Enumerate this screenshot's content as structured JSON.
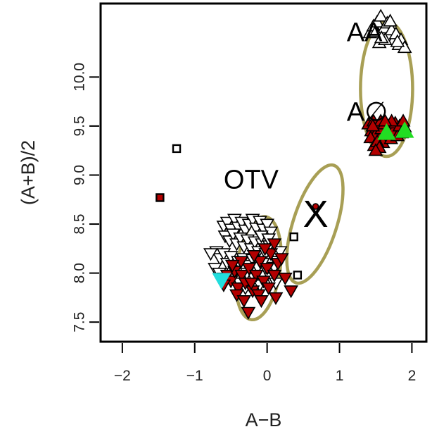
{
  "chart_data": {
    "type": "scatter",
    "xlabel": "A−B",
    "ylabel": "(A+B)/2",
    "xlim": [
      -2.3,
      2.2
    ],
    "ylim": [
      7.3,
      10.75
    ],
    "xticks": [
      -2,
      -1,
      0,
      1,
      2
    ],
    "yticks": [
      7.5,
      8.0,
      8.5,
      9.0,
      9.5,
      10.0
    ],
    "xtick_labels": [
      "−2",
      "−1",
      "0",
      "1",
      "2"
    ],
    "ytick_labels": [
      "7.5",
      "8.0",
      "8.5",
      "9.0",
      "9.5",
      "10.0"
    ],
    "grid": false,
    "colors": {
      "dark_red": "#b30000",
      "green": "#22dd22",
      "cyan": "#22dddd",
      "ellipse": "#a89f55",
      "open": "#ffffff"
    },
    "annotations": [
      {
        "text": "AA",
        "x": 1.1,
        "y": 10.45
      },
      {
        "text": "A∅",
        "x": 1.1,
        "y": 9.64
      },
      {
        "text": "OTV",
        "x": -0.6,
        "y": 8.95
      },
      {
        "text": "X",
        "x": 0.67,
        "y": 8.6
      }
    ],
    "ellipses": [
      {
        "group": "AA/A∅",
        "cx": 1.65,
        "cy": 9.88,
        "rx": 0.36,
        "ry": 0.69,
        "angle_deg": 0
      },
      {
        "group": "OTV",
        "cx": -0.12,
        "cy": 8.05,
        "rx": 0.3,
        "ry": 0.53,
        "angle_deg": 8
      },
      {
        "group": "X",
        "cx": 0.66,
        "cy": 8.5,
        "rx": 0.3,
        "ry": 0.63,
        "angle_deg": 18
      }
    ],
    "series": [
      {
        "marker": "square-open",
        "points": [
          [
            -1.25,
            9.27
          ],
          [
            0.37,
            8.37
          ],
          [
            0.42,
            7.98
          ]
        ]
      },
      {
        "marker": "square-red",
        "points": [
          [
            -1.48,
            8.77
          ]
        ]
      },
      {
        "marker": "dot-red",
        "points": [
          [
            0.67,
            8.68
          ]
        ]
      },
      {
        "marker": "triangle-up-open",
        "points": [
          [
            1.42,
            10.45
          ],
          [
            1.47,
            10.52
          ],
          [
            1.52,
            10.56
          ],
          [
            1.57,
            10.62
          ],
          [
            1.6,
            10.46
          ],
          [
            1.62,
            10.5
          ],
          [
            1.66,
            10.55
          ],
          [
            1.68,
            10.42
          ],
          [
            1.72,
            10.48
          ],
          [
            1.75,
            10.38
          ],
          [
            1.78,
            10.44
          ],
          [
            1.82,
            10.33
          ],
          [
            1.85,
            10.38
          ],
          [
            1.9,
            10.3
          ],
          [
            1.55,
            10.35
          ],
          [
            1.63,
            10.38
          ],
          [
            1.7,
            10.57
          ],
          [
            1.5,
            10.46
          ],
          [
            1.58,
            10.4
          ],
          [
            1.8,
            10.36
          ]
        ]
      },
      {
        "marker": "triangle-up-red",
        "points": [
          [
            1.4,
            9.52
          ],
          [
            1.44,
            9.45
          ],
          [
            1.47,
            9.55
          ],
          [
            1.5,
            9.42
          ],
          [
            1.53,
            9.5
          ],
          [
            1.56,
            9.38
          ],
          [
            1.58,
            9.47
          ],
          [
            1.6,
            9.33
          ],
          [
            1.62,
            9.52
          ],
          [
            1.65,
            9.42
          ],
          [
            1.68,
            9.49
          ],
          [
            1.71,
            9.37
          ],
          [
            1.74,
            9.45
          ],
          [
            1.77,
            9.53
          ],
          [
            1.8,
            9.4
          ],
          [
            1.83,
            9.5
          ],
          [
            1.86,
            9.43
          ],
          [
            1.9,
            9.49
          ],
          [
            1.43,
            9.38
          ],
          [
            1.48,
            9.3
          ],
          [
            1.52,
            9.34
          ],
          [
            1.55,
            9.28
          ],
          [
            1.5,
            9.25
          ],
          [
            1.57,
            9.55
          ],
          [
            1.72,
            9.55
          ],
          [
            1.88,
            9.55
          ],
          [
            1.46,
            9.5
          ],
          [
            1.63,
            9.55
          ]
        ]
      },
      {
        "marker": "triangle-up-green",
        "points": [
          [
            1.65,
            9.43
          ],
          [
            1.9,
            9.45
          ]
        ]
      },
      {
        "marker": "triangle-down-open",
        "points": [
          [
            -0.6,
            8.48
          ],
          [
            -0.55,
            8.52
          ],
          [
            -0.5,
            8.45
          ],
          [
            -0.45,
            8.55
          ],
          [
            -0.4,
            8.47
          ],
          [
            -0.35,
            8.52
          ],
          [
            -0.3,
            8.44
          ],
          [
            -0.25,
            8.5
          ],
          [
            -0.2,
            8.55
          ],
          [
            -0.15,
            8.46
          ],
          [
            -0.1,
            8.53
          ],
          [
            -0.05,
            8.45
          ],
          [
            0.0,
            8.5
          ],
          [
            0.05,
            8.42
          ],
          [
            -0.58,
            8.38
          ],
          [
            -0.52,
            8.33
          ],
          [
            -0.47,
            8.4
          ],
          [
            -0.42,
            8.3
          ],
          [
            -0.37,
            8.36
          ],
          [
            -0.32,
            8.27
          ],
          [
            -0.27,
            8.34
          ],
          [
            -0.22,
            8.25
          ],
          [
            -0.17,
            8.32
          ],
          [
            -0.12,
            8.22
          ],
          [
            -0.07,
            8.3
          ],
          [
            -0.02,
            8.2
          ],
          [
            0.03,
            8.28
          ],
          [
            0.08,
            8.18
          ],
          [
            -0.7,
            8.22
          ],
          [
            -0.65,
            8.15
          ],
          [
            -0.6,
            8.2
          ],
          [
            -0.55,
            8.1
          ],
          [
            -0.5,
            8.17
          ],
          [
            -0.45,
            8.05
          ],
          [
            -0.4,
            8.12
          ],
          [
            -0.33,
            8.15
          ],
          [
            -0.26,
            8.08
          ],
          [
            -0.2,
            8.14
          ],
          [
            -0.13,
            8.06
          ],
          [
            -0.06,
            8.1
          ],
          [
            0.0,
            8.02
          ],
          [
            0.1,
            8.06
          ],
          [
            0.15,
            8.12
          ],
          [
            -0.78,
            8.2
          ],
          [
            -0.72,
            8.05
          ],
          [
            -0.66,
            8.0
          ],
          [
            -0.6,
            7.95
          ],
          [
            -0.38,
            7.9
          ],
          [
            -0.3,
            7.85
          ],
          [
            -0.18,
            7.95
          ],
          [
            -0.1,
            7.88
          ],
          [
            0.05,
            7.95
          ],
          [
            0.12,
            7.9
          ],
          [
            -0.48,
            7.96
          ],
          [
            -0.28,
            8.0
          ],
          [
            0.18,
            8.22
          ],
          [
            -0.08,
            8.38
          ],
          [
            0.02,
            8.35
          ]
        ]
      },
      {
        "marker": "triangle-down-red",
        "points": [
          [
            -0.55,
            7.98
          ],
          [
            -0.5,
            7.92
          ],
          [
            -0.45,
            8.02
          ],
          [
            -0.4,
            7.85
          ],
          [
            -0.35,
            7.98
          ],
          [
            -0.3,
            7.9
          ],
          [
            -0.25,
            8.05
          ],
          [
            -0.2,
            7.82
          ],
          [
            -0.15,
            7.98
          ],
          [
            -0.1,
            8.12
          ],
          [
            -0.05,
            7.92
          ],
          [
            0.0,
            8.05
          ],
          [
            0.05,
            8.2
          ],
          [
            0.1,
            7.98
          ],
          [
            0.15,
            8.1
          ],
          [
            -0.6,
            7.88
          ],
          [
            -0.42,
            7.78
          ],
          [
            -0.32,
            7.72
          ],
          [
            -0.22,
            7.9
          ],
          [
            -0.12,
            7.78
          ],
          [
            0.02,
            7.85
          ],
          [
            0.12,
            7.75
          ],
          [
            -0.08,
            7.72
          ],
          [
            0.25,
            7.95
          ],
          [
            0.33,
            7.82
          ],
          [
            -0.36,
            8.12
          ],
          [
            -0.18,
            8.18
          ],
          [
            -0.03,
            8.25
          ],
          [
            0.1,
            8.3
          ],
          [
            -0.26,
            7.6
          ],
          [
            -0.48,
            8.08
          ],
          [
            0.2,
            8.15
          ]
        ]
      },
      {
        "marker": "triangle-down-cyan",
        "points": [
          [
            -0.63,
            7.93
          ]
        ]
      }
    ]
  }
}
